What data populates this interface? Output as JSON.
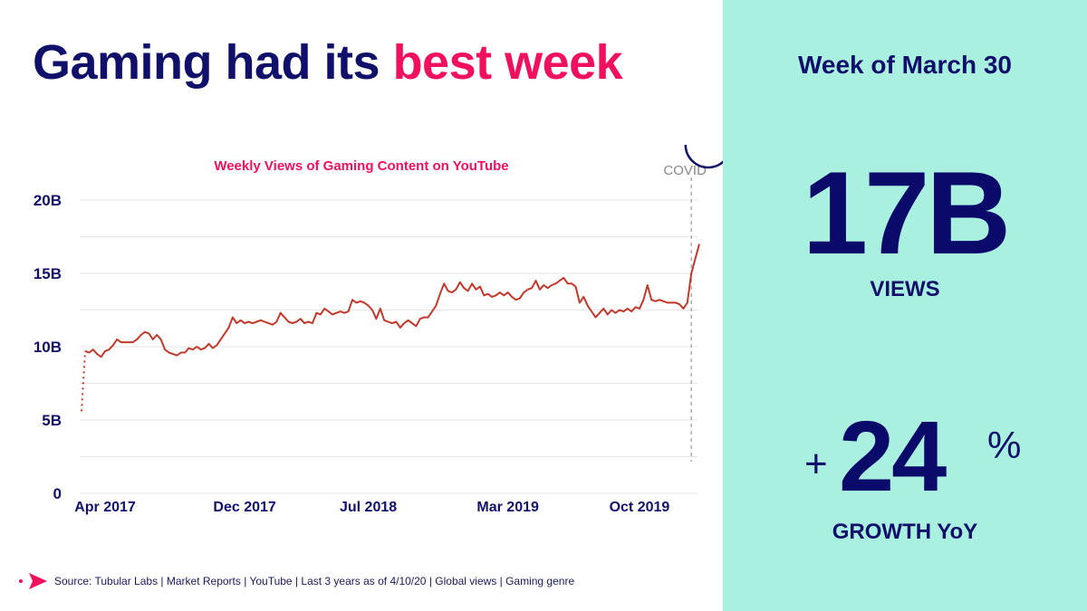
{
  "headline": {
    "part1": "Gaming had its ",
    "part2": "best week"
  },
  "summary": {
    "week": "Week of March 30",
    "views_value": "17B",
    "views_label": "VIEWS",
    "growth_sign": "+",
    "growth_value": "24",
    "growth_unit": "%",
    "growth_label": "GROWTH YoY"
  },
  "source": "Source: Tubular Labs | Market Reports | YouTube | Last 3 years as of 4/10/20 | Global views | Gaming genre",
  "colors": {
    "navy": "#10106a",
    "accent": "#f0105e",
    "line": "#c0392b",
    "panel": "#aaf0e0"
  },
  "chart_data": {
    "type": "line",
    "title": "Weekly Views of Gaming Content on YouTube",
    "xlabel": "",
    "ylabel": "",
    "ylim": [
      0,
      20
    ],
    "y_unit": "B",
    "yticks": [
      {
        "value": 0,
        "label": "0"
      },
      {
        "value": 5,
        "label": "5B"
      },
      {
        "value": 10,
        "label": "10B"
      },
      {
        "value": 15,
        "label": "15B"
      },
      {
        "value": 20,
        "label": "20B"
      }
    ],
    "xticks": [
      {
        "index": 0,
        "label": "Apr 2017"
      },
      {
        "index": 35,
        "label": "Dec 2017"
      },
      {
        "index": 66,
        "label": "Jul 2018"
      },
      {
        "index": 101,
        "label": "Mar 2019"
      },
      {
        "index": 134,
        "label": "Oct 2019"
      }
    ],
    "grid": true,
    "annotation": {
      "label": "COVID",
      "index": 152
    },
    "highlight_index": 156,
    "dotted_start": {
      "from": 5.6,
      "to": 9.7
    },
    "series": [
      {
        "values": [
          9.7,
          9.6,
          9.8,
          9.5,
          9.3,
          9.7,
          9.8,
          10.1,
          10.5,
          10.3,
          10.3,
          10.3,
          10.3,
          10.5,
          10.8,
          11.0,
          10.9,
          10.5,
          10.8,
          10.5,
          9.8,
          9.6,
          9.5,
          9.4,
          9.6,
          9.6,
          9.9,
          9.8,
          10.0,
          9.8,
          9.9,
          10.2,
          9.9,
          10.1,
          10.5,
          10.9,
          11.3,
          12.0,
          11.6,
          11.8,
          11.6,
          11.7,
          11.6,
          11.7,
          11.8,
          11.7,
          11.6,
          11.5,
          11.7,
          12.3,
          12.0,
          11.7,
          11.6,
          11.7,
          11.9,
          11.6,
          11.7,
          11.6,
          12.3,
          12.2,
          12.6,
          12.4,
          12.2,
          12.3,
          12.4,
          12.3,
          12.4,
          13.2,
          13.0,
          13.1,
          13.0,
          12.8,
          12.5,
          11.9,
          12.6,
          11.8,
          11.7,
          11.6,
          11.7,
          11.3,
          11.6,
          11.8,
          11.6,
          11.4,
          11.9,
          12.0,
          12.0,
          12.4,
          12.8,
          13.6,
          14.3,
          13.8,
          13.7,
          13.9,
          14.4,
          14.0,
          13.8,
          14.3,
          13.9,
          14.1,
          13.5,
          13.6,
          13.4,
          13.5,
          13.7,
          13.5,
          13.7,
          13.4,
          13.2,
          13.3,
          13.7,
          13.9,
          14.0,
          14.5,
          13.9,
          14.2,
          14.0,
          14.2,
          14.3,
          14.5,
          14.7,
          14.3,
          14.3,
          14.1,
          13.0,
          13.4,
          12.8,
          12.4,
          12.0,
          12.3,
          12.6,
          12.2,
          12.5,
          12.3,
          12.5,
          12.4,
          12.6,
          12.4,
          12.7,
          12.6,
          13.2,
          14.2,
          13.2,
          13.1,
          13.2,
          13.1,
          13.0,
          13.0,
          13.0,
          12.9,
          12.6,
          13.0,
          15.0,
          16.0,
          17.0
        ]
      }
    ]
  }
}
